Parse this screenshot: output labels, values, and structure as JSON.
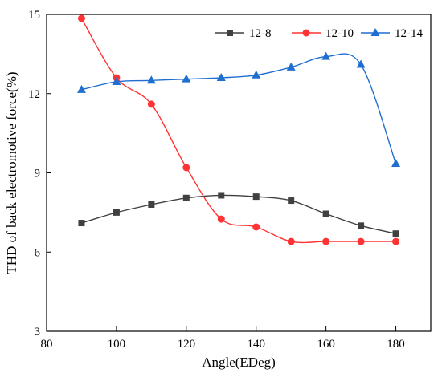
{
  "chart_data": {
    "type": "line",
    "title": "",
    "xlabel": "Angle(EDeg)",
    "ylabel": "THD of back electromotive force(%)",
    "xlim": [
      80,
      190
    ],
    "ylim": [
      3,
      15
    ],
    "xticks": [
      80,
      100,
      120,
      140,
      160,
      180
    ],
    "yticks": [
      3,
      6,
      9,
      12,
      15
    ],
    "grid": false,
    "legend_position": "top-right",
    "x": [
      90,
      100,
      110,
      120,
      130,
      140,
      150,
      160,
      170,
      180
    ],
    "series": [
      {
        "name": "12-8",
        "color": "#404040",
        "marker": "square",
        "values": [
          7.1,
          7.5,
          7.8,
          8.05,
          8.15,
          8.1,
          7.95,
          7.45,
          7.0,
          6.7
        ]
      },
      {
        "name": "12-10",
        "color": "#ff3333",
        "marker": "circle",
        "values": [
          14.85,
          12.6,
          11.6,
          9.2,
          7.25,
          6.95,
          6.4,
          6.4,
          6.4,
          6.4
        ]
      },
      {
        "name": "12-14",
        "color": "#1f6fd1",
        "marker": "triangle",
        "values": [
          12.15,
          12.45,
          12.5,
          12.55,
          12.6,
          12.7,
          13.0,
          13.4,
          13.1,
          9.35
        ]
      }
    ]
  }
}
